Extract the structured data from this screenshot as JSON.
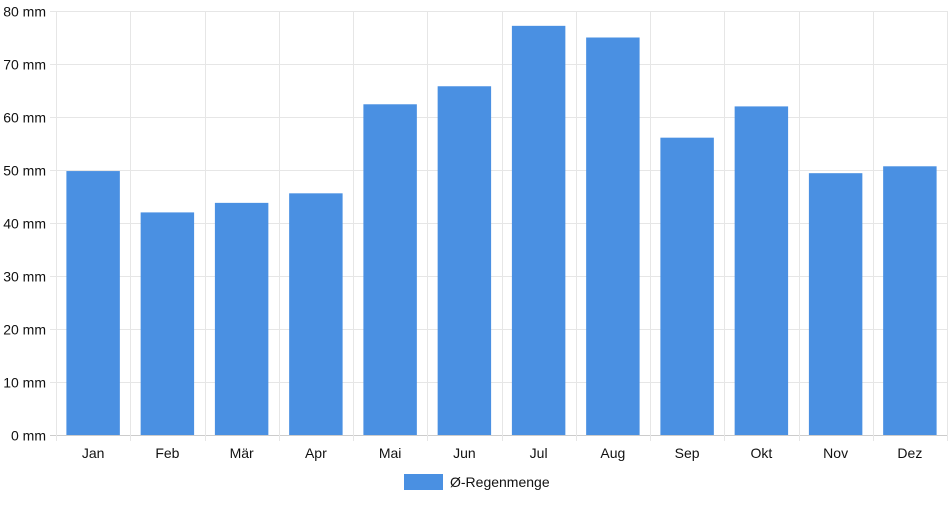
{
  "chart_data": {
    "type": "bar",
    "categories": [
      "Jan",
      "Feb",
      "Mär",
      "Apr",
      "Mai",
      "Jun",
      "Jul",
      "Aug",
      "Sep",
      "Okt",
      "Nov",
      "Dez"
    ],
    "series": [
      {
        "name": "Ø-Regenmenge",
        "values": [
          49.8,
          42.0,
          43.8,
          45.6,
          62.4,
          65.8,
          77.2,
          75.0,
          56.1,
          62.0,
          49.4,
          50.7
        ],
        "color": "#4a90e2"
      }
    ],
    "y_ticks": [
      "0 mm",
      "10 mm",
      "20 mm",
      "30 mm",
      "40 mm",
      "50 mm",
      "60 mm",
      "70 mm",
      "80 mm"
    ],
    "ylim": [
      0,
      80
    ],
    "grid": true,
    "legend_position": "bottom"
  }
}
